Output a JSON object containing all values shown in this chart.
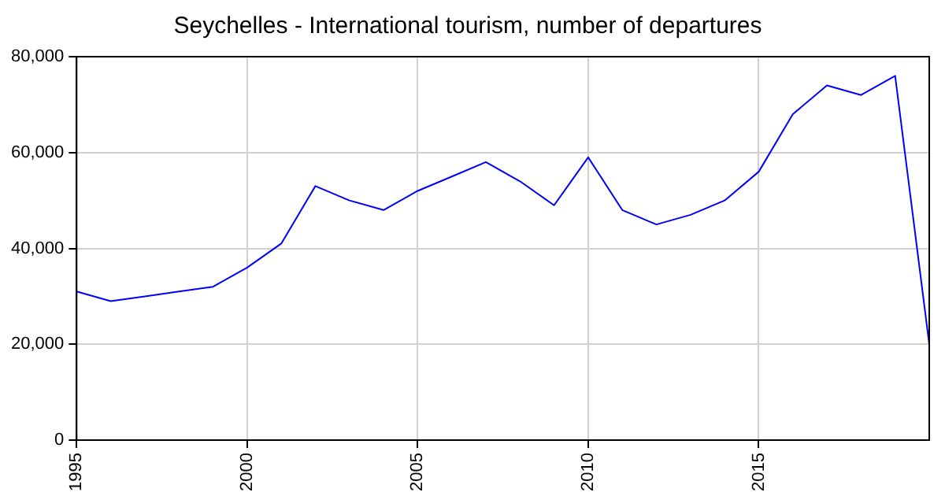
{
  "chart_data": {
    "type": "line",
    "title": "Seychelles - International tourism, number of departures",
    "x": [
      1995,
      1996,
      1997,
      1998,
      1999,
      2000,
      2001,
      2002,
      2003,
      2004,
      2005,
      2006,
      2007,
      2008,
      2009,
      2010,
      2011,
      2012,
      2013,
      2014,
      2015,
      2016,
      2017,
      2018,
      2019,
      2020
    ],
    "series": [
      {
        "color": "#0000ff",
        "values": [
          31000,
          29000,
          30000,
          31000,
          32000,
          36000,
          41000,
          53000,
          50000,
          48000,
          52000,
          55000,
          58000,
          54000,
          49000,
          59000,
          48000,
          45000,
          47000,
          50000,
          56000,
          68000,
          74000,
          72000,
          76000,
          20000
        ]
      }
    ],
    "xlim": [
      1995,
      2020
    ],
    "xticks": [
      1995,
      2000,
      2005,
      2010,
      2015
    ],
    "ylim": [
      0,
      80000
    ],
    "yticks": [
      {
        "value": 0,
        "label": "0"
      },
      {
        "value": 20000,
        "label": "20,000"
      },
      {
        "value": 40000,
        "label": "40,000"
      },
      {
        "value": 60000,
        "label": "60,000"
      },
      {
        "value": 80000,
        "label": "80,000"
      }
    ],
    "grid": true,
    "legend": false,
    "marker": "none",
    "line_style": "solid"
  }
}
